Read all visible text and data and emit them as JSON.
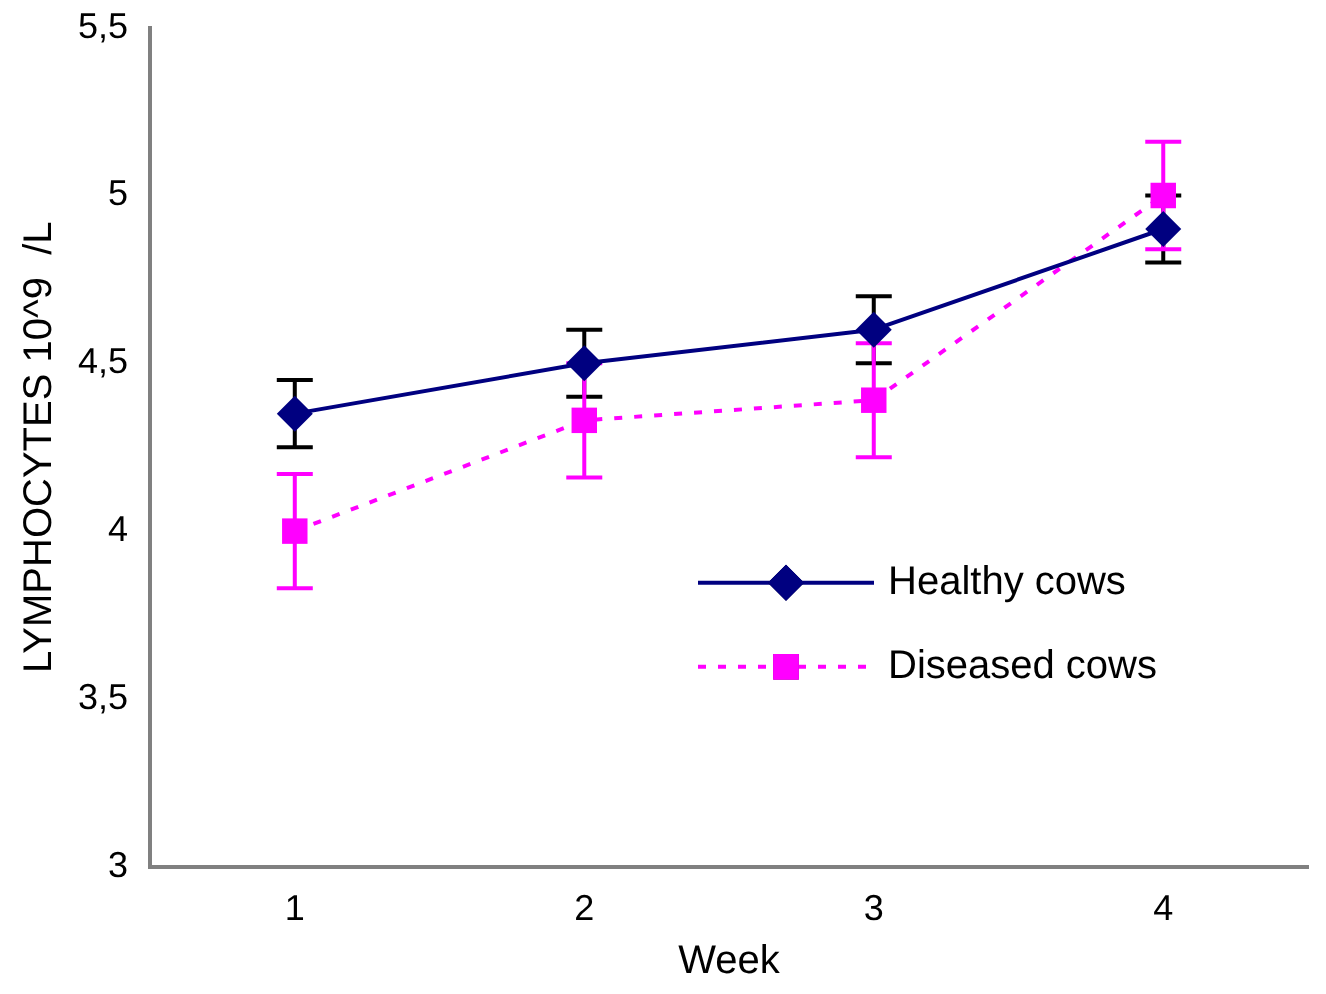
{
  "chart_data": {
    "type": "line",
    "xlabel": "Week",
    "ylabel": "LYMPHOCYTES 10^9  /L",
    "categories": [
      "1",
      "2",
      "3",
      "4"
    ],
    "series": [
      {
        "name": "Healthy cows",
        "color": "#000080",
        "values": [
          4.35,
          4.5,
          4.6,
          4.9
        ],
        "errors": [
          0.1,
          0.1,
          0.1,
          0.1
        ],
        "marker": "diamond",
        "line_style": "solid"
      },
      {
        "name": "Diseased cows",
        "color": "#ff00ff",
        "values": [
          4.0,
          4.33,
          4.39,
          5.0
        ],
        "errors": [
          0.17,
          0.17,
          0.17,
          0.16
        ],
        "marker": "square",
        "line_style": "dotted"
      }
    ],
    "ylim": [
      3,
      5.5
    ],
    "yticks": [
      {
        "value": 3,
        "label": "3"
      },
      {
        "value": 3.5,
        "label": "3,5"
      },
      {
        "value": 4,
        "label": "4"
      },
      {
        "value": 4.5,
        "label": "4,5"
      },
      {
        "value": 5,
        "label": "5"
      },
      {
        "value": 5.5,
        "label": "5,5"
      }
    ],
    "grid": false,
    "legend": "bottom right"
  }
}
